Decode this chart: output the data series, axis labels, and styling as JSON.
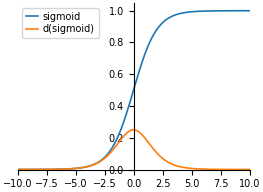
{
  "x_min": -10.0,
  "x_max": 10.0,
  "num_points": 1000,
  "sigmoid_color": "#1f77b4",
  "dsigmoid_color": "#ff7f0e",
  "sigmoid_label": "sigmoid",
  "dsigmoid_label": "d(sigmoid)",
  "xlim": [
    -10,
    10
  ],
  "ylim": [
    0.0,
    1.05
  ],
  "xticks": [
    -10.0,
    -7.5,
    -5.0,
    -2.5,
    0.0,
    2.5,
    5.0,
    7.5,
    10.0
  ],
  "yticks": [
    0.0,
    0.2,
    0.4,
    0.6,
    0.8,
    1.0
  ],
  "legend_loc": "upper left",
  "line_width": 1.2,
  "figsize": [
    2.63,
    1.92
  ],
  "dpi": 100,
  "bg_color": "#ffffff",
  "tick_fontsize": 7,
  "legend_fontsize": 7
}
